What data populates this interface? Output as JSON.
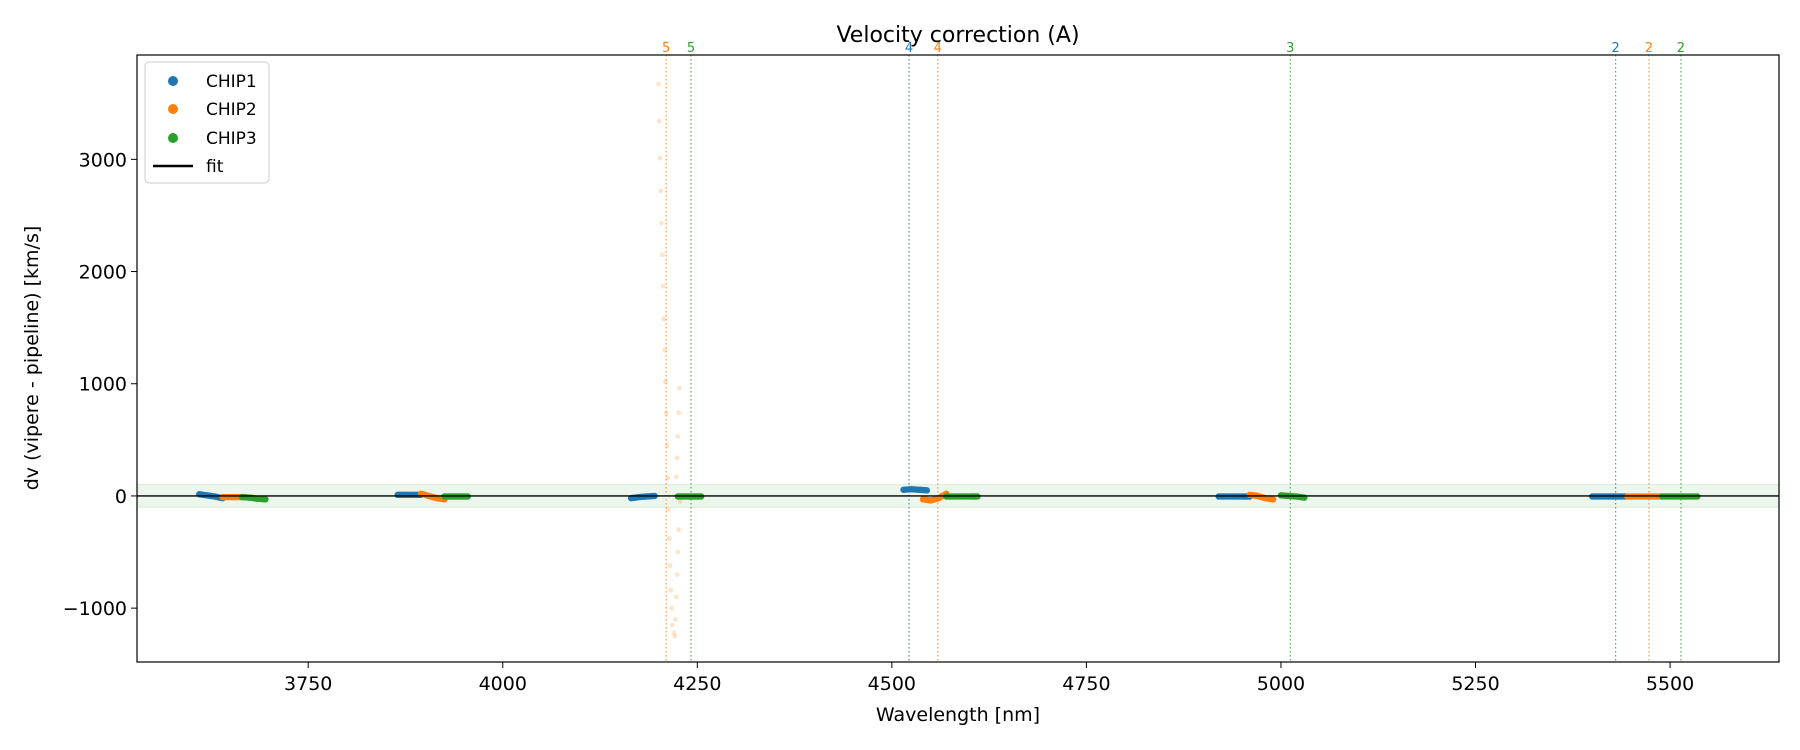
{
  "chart_data": {
    "type": "scatter",
    "title": "Velocity correction (A)",
    "xlabel": "Wavelength [nm]",
    "ylabel": "dv (vipere - pipeline) [km/s]",
    "xlim": [
      3530,
      5640
    ],
    "ylim": [
      -1480,
      3930
    ],
    "xticks": [
      3750,
      4000,
      4250,
      4500,
      4750,
      5000,
      5250,
      5500
    ],
    "yticks": [
      -1000,
      0,
      1000,
      2000,
      3000
    ],
    "legend_position": "upper-left",
    "colors": {
      "CHIP1": "#1f77b4",
      "CHIP2": "#ff7f0e",
      "CHIP3": "#2ca02c",
      "fit": "#000000"
    },
    "fit": {
      "label": "fit",
      "value": 0
    },
    "band": {
      "low": -100,
      "high": 100,
      "color": "#2ca02c"
    },
    "series": [
      {
        "name": "CHIP1",
        "color": "#1f77b4",
        "segments": [
          {
            "x": [
              3610,
              3620,
              3630,
              3640
            ],
            "y": [
              15,
              5,
              -5,
              -20
            ]
          },
          {
            "x": [
              3865,
              3875,
              3885,
              3895
            ],
            "y": [
              10,
              10,
              10,
              10
            ]
          },
          {
            "x": [
              4165,
              4175,
              4185,
              4195
            ],
            "y": [
              -20,
              -10,
              -5,
              0
            ]
          },
          {
            "x": [
              4515,
              4525,
              4535,
              4545
            ],
            "y": [
              55,
              60,
              55,
              50
            ]
          },
          {
            "x": [
              4920,
              4935,
              4950,
              4960
            ],
            "y": [
              -5,
              -5,
              -5,
              -5
            ]
          },
          {
            "x": [
              5400,
              5415,
              5430,
              5445
            ],
            "y": [
              -5,
              -5,
              -5,
              -5
            ]
          }
        ]
      },
      {
        "name": "CHIP2",
        "color": "#ff7f0e",
        "segments": [
          {
            "x": [
              3640,
              3650,
              3660,
              3670
            ],
            "y": [
              -10,
              -10,
              -10,
              -10
            ]
          },
          {
            "x": [
              3895,
              3905,
              3915,
              3925
            ],
            "y": [
              20,
              0,
              -20,
              -30
            ]
          },
          {
            "x": [
              4540,
              4550,
              4560,
              4570
            ],
            "y": [
              -30,
              -40,
              -20,
              20
            ]
          },
          {
            "x": [
              4960,
              4970,
              4980,
              4990
            ],
            "y": [
              10,
              0,
              -20,
              -30
            ]
          },
          {
            "x": [
              5445,
              5460,
              5475,
              5490
            ],
            "y": [
              -5,
              -5,
              -5,
              -5
            ]
          }
        ]
      },
      {
        "name": "CHIP3",
        "color": "#2ca02c",
        "segments": [
          {
            "x": [
              3665,
              3675,
              3685,
              3695
            ],
            "y": [
              -10,
              -15,
              -25,
              -30
            ]
          },
          {
            "x": [
              3925,
              3935,
              3945,
              3955
            ],
            "y": [
              -5,
              -5,
              -5,
              -5
            ]
          },
          {
            "x": [
              4225,
              4235,
              4245,
              4255
            ],
            "y": [
              -5,
              -5,
              -5,
              -5
            ]
          },
          {
            "x": [
              4570,
              4585,
              4600,
              4610
            ],
            "y": [
              -5,
              -5,
              -5,
              -5
            ]
          },
          {
            "x": [
              5000,
              5010,
              5020,
              5030
            ],
            "y": [
              5,
              0,
              -5,
              -15
            ]
          },
          {
            "x": [
              5490,
              5505,
              5520,
              5535
            ],
            "y": [
              -5,
              -5,
              -5,
              -5
            ]
          }
        ]
      }
    ],
    "outliers": {
      "series": "CHIP2",
      "x": [
        4200,
        4201,
        4202,
        4203,
        4204,
        4205,
        4206,
        4207,
        4208,
        4209,
        4210,
        4211,
        4212,
        4213,
        4214,
        4215,
        4216,
        4217,
        4218,
        4220,
        4221,
        4222,
        4223,
        4224,
        4225,
        4226
      ],
      "y": [
        3670,
        3340,
        3010,
        2720,
        2430,
        2150,
        1870,
        1580,
        1300,
        1020,
        740,
        450,
        160,
        -120,
        -380,
        -620,
        -840,
        -1000,
        -1150,
        -1220,
        -1250,
        -1100,
        -900,
        -700,
        -500,
        -300
      ]
    },
    "outliers_right": {
      "series": "CHIP2",
      "x": [
        4223,
        4224,
        4225,
        4226,
        4227,
        4228
      ],
      "y": [
        170,
        340,
        530,
        740,
        960,
        -50
      ]
    },
    "vlines": [
      {
        "x": 4210,
        "label": "5",
        "series": "CHIP2"
      },
      {
        "x": 4242,
        "label": "5",
        "series": "CHIP3"
      },
      {
        "x": 4522,
        "label": "4",
        "series": "CHIP1"
      },
      {
        "x": 4559,
        "label": "4",
        "series": "CHIP2"
      },
      {
        "x": 5012,
        "label": "3",
        "series": "CHIP3"
      },
      {
        "x": 5430,
        "label": "2",
        "series": "CHIP1"
      },
      {
        "x": 5473,
        "label": "2",
        "series": "CHIP2"
      },
      {
        "x": 5514,
        "label": "2",
        "series": "CHIP3"
      }
    ]
  }
}
